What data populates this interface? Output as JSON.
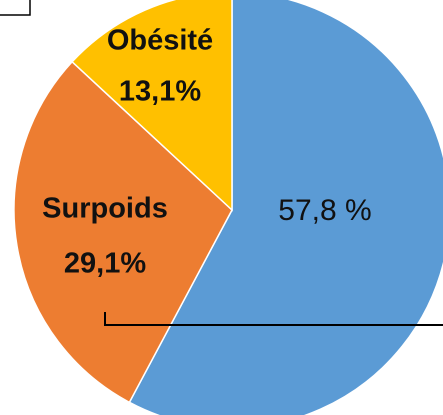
{
  "chart_data": {
    "type": "pie",
    "categories": [
      null,
      "Surpoids",
      "Obésité"
    ],
    "values": [
      57.8,
      29.1,
      13.1
    ],
    "value_labels": [
      "57,8 %",
      "29,1%",
      "13,1%"
    ],
    "colors": [
      "#5b9bd5",
      "#ed7d31",
      "#ffc000"
    ]
  }
}
